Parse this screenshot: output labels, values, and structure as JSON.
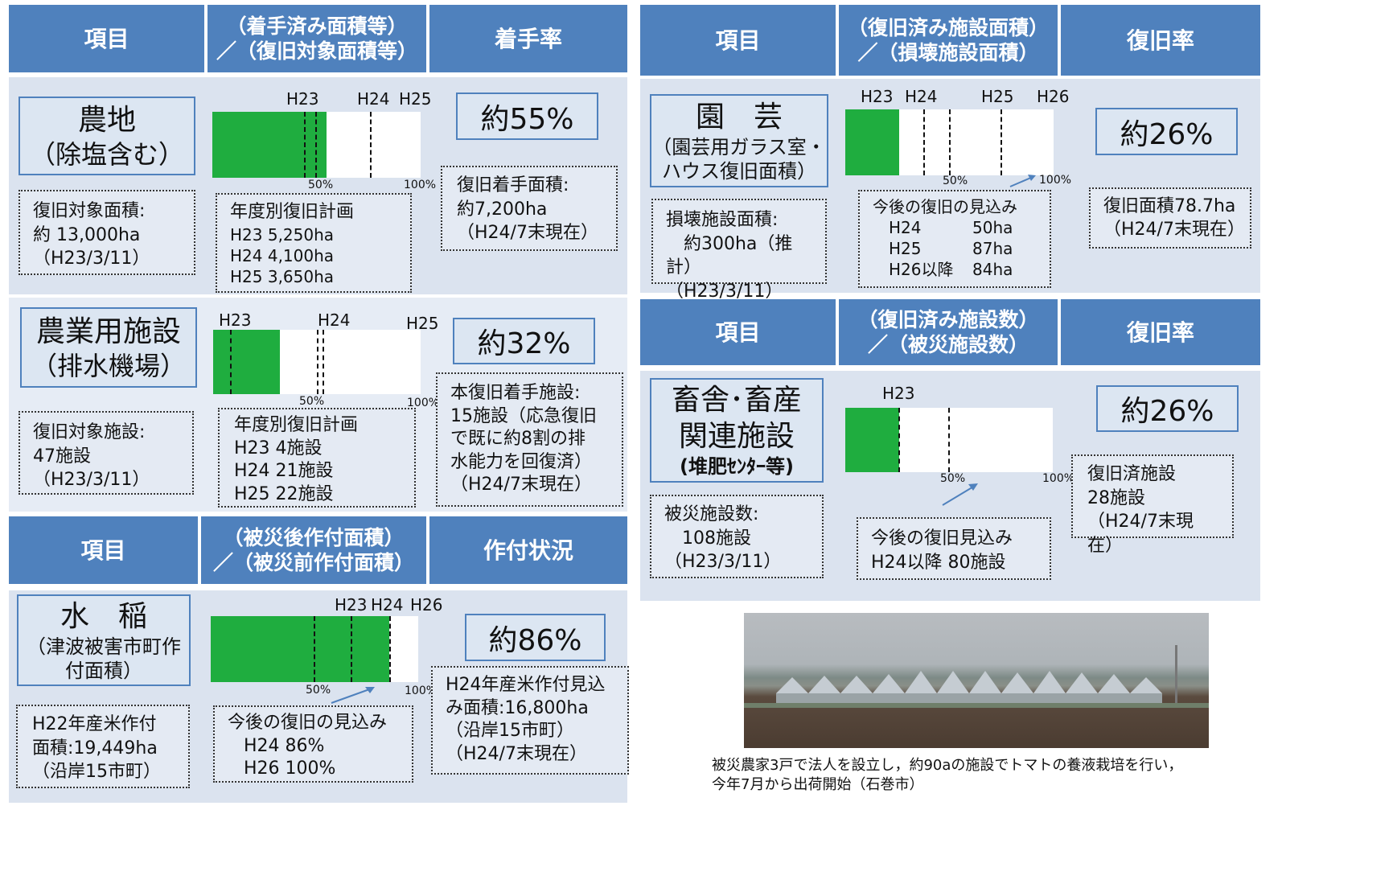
{
  "headers": {
    "left": {
      "item": "項目",
      "mid_line1": "（着手済み面積等）",
      "mid_line2": "／（復旧対象面積等）",
      "rate": "着手率"
    },
    "rice": {
      "item": "項目",
      "mid_line1": "（被災後作付面積）",
      "mid_line2": "／（被災前作付面積）",
      "rate": "作付状況"
    },
    "right_top": {
      "item": "項目",
      "mid_line1": "（復旧済み施設面積）",
      "mid_line2": "／（損壊施設面積）",
      "rate": "復旧率"
    },
    "right_mid": {
      "item": "項目",
      "mid_line1": "（復旧済み施設数）",
      "mid_line2": "／（被災施設数）",
      "rate": "復旧率"
    }
  },
  "farmland": {
    "name_line1": "農地",
    "name_line2": "（除塩含む）",
    "info": [
      "復旧対象面積:",
      "約 13,000ha",
      "（H23/3/11）"
    ],
    "years": [
      "H23",
      "H24",
      "H25"
    ],
    "tick_50": "50%",
    "tick_100": "100%",
    "progress": 0.55,
    "plan": [
      "年度別復旧計画",
      "H23  5,250ha",
      "H24  4,100ha",
      "H25  3,650ha"
    ],
    "rate": "約55%",
    "status": [
      "復旧着手面積:",
      "約7,200ha",
      "（H24/7末現在）"
    ]
  },
  "facility": {
    "name_line1": "農業用施設",
    "name_line2": "（排水機場）",
    "info": [
      "復旧対象施設:",
      "47施設",
      "（H23/3/11）"
    ],
    "years": [
      "H23",
      "H24",
      "H25"
    ],
    "tick_50": "50%",
    "tick_100": "100%",
    "progress": 0.32,
    "plan": [
      "年度別復旧計画",
      "H23    4施設",
      "H24  21施設",
      "H25  22施設"
    ],
    "rate": "約32%",
    "status": [
      "本復旧着手施設:",
      "15施設（応急復旧",
      "で既に約8割の排",
      "水能力を回復済）",
      "（H24/7末現在）"
    ]
  },
  "rice": {
    "name_line1": "水　稲",
    "name_line2": "（津波被害市町作",
    "name_line3": "付面積）",
    "info": [
      "H22年産米作付",
      "面積:19,449ha",
      "（沿岸15市町）"
    ],
    "years": [
      "H23",
      "H24",
      "H26"
    ],
    "tick_50": "50%",
    "tick_100": "100%",
    "progress": 0.86,
    "plan": [
      "今後の復旧の見込み",
      "H24     86%",
      "H26    100%"
    ],
    "rate": "約86%",
    "status": [
      "H24年産米作付見込",
      "み面積:16,800ha",
      "（沿岸15市町）",
      "（H24/7末現在）"
    ]
  },
  "horticulture": {
    "name_line1": "園　芸",
    "name_line2": "（園芸用ガラス室・",
    "name_line3": "ハウス復旧面積）",
    "info": [
      "損壊施設面積:",
      "　約300ha（推計）",
      "（H23/3/11）"
    ],
    "years": [
      "H23",
      "H24",
      "H25",
      "H26"
    ],
    "tick_50": "50%",
    "tick_100": "100%",
    "progress": 0.26,
    "plan_title": "今後の復旧の見込み",
    "plan_rows": [
      [
        "H24",
        "50ha"
      ],
      [
        "H25",
        "87ha"
      ],
      [
        "H26以降",
        "84ha"
      ]
    ],
    "rate": "約26%",
    "status": [
      "復旧面積78.7ha",
      "（H24/7末現在）"
    ]
  },
  "livestock": {
    "name_line1": "畜舎･畜産",
    "name_line2": "関連施設",
    "name_line3": "(堆肥ｾﾝﾀｰ等)",
    "info": [
      "被災施設数:",
      "　108施設",
      "（H23/3/11）"
    ],
    "years": [
      "H23"
    ],
    "tick_50": "50%",
    "tick_100": "100%",
    "progress": 0.26,
    "plan": [
      "今後の復旧見込み",
      "H24以降 80施設"
    ],
    "rate": "約26%",
    "status": [
      "復旧済施設",
      "28施設",
      "（H24/7末現在）"
    ]
  },
  "photo_caption": [
    "被災農家3戸で法人を設立し，約90aの施設でトマトの養液栽培を行い，",
    "今年7月から出荷開始（石巻市）"
  ]
}
